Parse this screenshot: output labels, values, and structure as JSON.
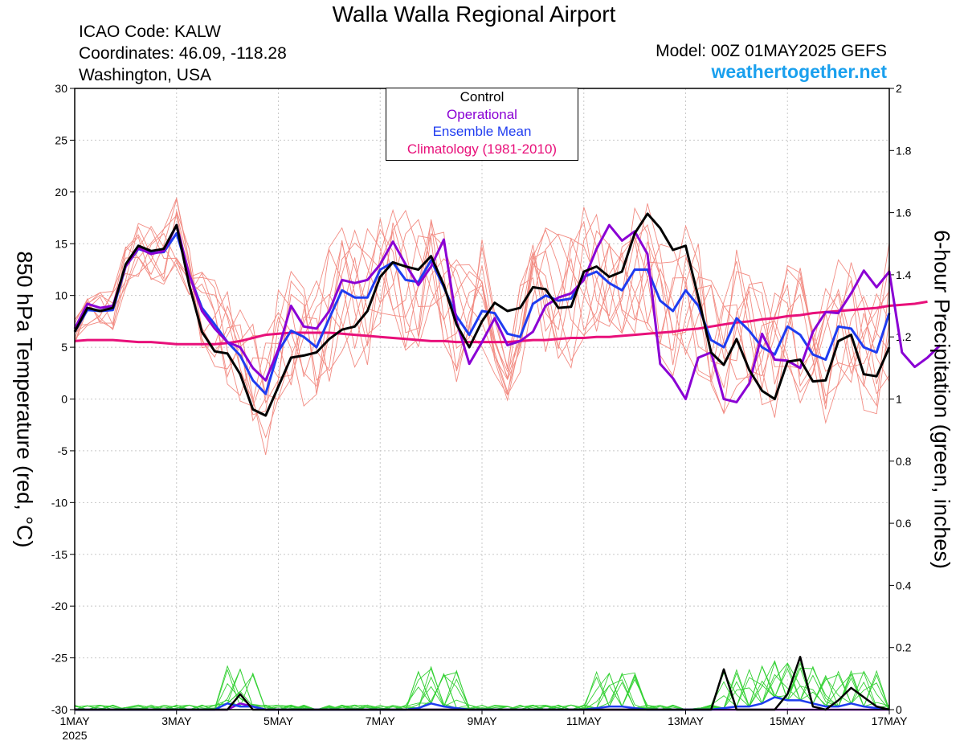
{
  "header": {
    "title": "Walla Walla Regional Airport",
    "icao": "ICAO Code: KALW",
    "coords": "Coordinates: 46.09, -118.28",
    "location": "Washington, USA",
    "model": "Model: 00Z 01MAY2025 GEFS",
    "site": "weathertogether.net"
  },
  "legend": {
    "items": [
      {
        "label": "Control",
        "color": "#000000"
      },
      {
        "label": "Operational",
        "color": "#8a00d4"
      },
      {
        "label": "Ensemble Mean",
        "color": "#1f3cf0"
      },
      {
        "label": "Climatology (1981-2010)",
        "color": "#e8107a"
      }
    ]
  },
  "axes": {
    "left_label": "850 hPa Temperature (red, °C)",
    "right_label": "6-hour Precipitation (green, inches)",
    "left_ticks": [
      "30",
      "25",
      "20",
      "15",
      "10",
      "5",
      "0",
      "-5",
      "-10",
      "-15",
      "-20",
      "-25",
      "-30"
    ],
    "right_ticks": [
      "2",
      "1.8",
      "1.6",
      "1.4",
      "1.2",
      "1",
      "0.8",
      "0.6",
      "0.4",
      "0.2",
      "0"
    ],
    "x_ticks": [
      "1MAY",
      "3MAY",
      "5MAY",
      "7MAY",
      "9MAY",
      "11MAY",
      "13MAY",
      "15MAY",
      "17MAY"
    ],
    "x_year": "2025"
  },
  "chart_data": {
    "type": "line",
    "title": "Walla Walla Regional Airport",
    "x_unit": "hours since 00Z 01MAY2025, 6-hourly",
    "xlim": [
      0,
      384
    ],
    "ylim_left": [
      -30,
      30
    ],
    "ylim_right": [
      0,
      2
    ],
    "grid": true,
    "series": [
      {
        "name": "Control",
        "axis": "temperature",
        "color": "#000000",
        "values": [
          6.5,
          8.8,
          8.5,
          8.8,
          13,
          14.8,
          14.3,
          14.5,
          16.8,
          11,
          6.5,
          4.6,
          4.4,
          2.4,
          -1,
          -1.6,
          1.2,
          4,
          4.2,
          4.5,
          5.8,
          6.7,
          7,
          8.5,
          11.8,
          13.2,
          12.8,
          12.5,
          13.8,
          11,
          7.2,
          5,
          7.5,
          9.3,
          8.5,
          8.8,
          10.8,
          10.6,
          8.8,
          8.9,
          12.3,
          12.8,
          11.8,
          12.3,
          16,
          17.9,
          16.5,
          14.4,
          14.8,
          9.8,
          4.5,
          3.3,
          5.8,
          2.8,
          0.8,
          0,
          3.6,
          3.8,
          1.7,
          1.8,
          5.6,
          6.2,
          2.4,
          2.2,
          5
        ]
      },
      {
        "name": "Operational",
        "axis": "temperature",
        "color": "#8a00d4",
        "values": [
          6.8,
          9.2,
          8.8,
          9,
          12.8,
          14.6,
          14,
          14.3,
          16.8,
          12,
          8.5,
          6.8,
          5.5,
          5,
          3,
          1.8,
          4.8,
          9,
          7,
          6.8,
          8.5,
          11.5,
          11.2,
          11.5,
          13,
          15.2,
          13,
          11,
          12.8,
          15.4,
          7.5,
          3.4,
          5.5,
          7.8,
          5.2,
          5.6,
          6.5,
          9,
          9.8,
          10.2,
          11.5,
          14.5,
          16.8,
          15.3,
          16.2,
          14,
          3.4,
          2,
          0,
          4,
          4.5,
          0,
          -0.3,
          1.5,
          6.3,
          3.8,
          3.7,
          3,
          6.5,
          8.4,
          8.3,
          10.2,
          12.4,
          10.8,
          12.3,
          4.5,
          3.1,
          4,
          5.2
        ]
      },
      {
        "name": "Ensemble Mean",
        "axis": "temperature",
        "color": "#1f3cf0",
        "values": [
          6.5,
          8.6,
          8.5,
          8.6,
          12.8,
          14.5,
          14.1,
          14.2,
          16,
          12,
          8.8,
          7.2,
          5.5,
          4.2,
          1.8,
          0.5,
          4.6,
          6.6,
          6,
          5,
          7.8,
          10.5,
          9.8,
          9.8,
          12.5,
          13.2,
          11.5,
          11.3,
          13.4,
          10.8,
          8,
          6.2,
          8.5,
          8.3,
          6.3,
          6,
          9.2,
          10,
          9.5,
          9.7,
          11.8,
          12.3,
          11.2,
          10.5,
          12.5,
          12.5,
          9.5,
          8.5,
          10.5,
          9,
          5.7,
          5,
          7.8,
          6.6,
          5,
          4.3,
          7,
          6.2,
          4.3,
          3.8,
          7,
          6.8,
          5,
          4.5,
          8.3
        ]
      },
      {
        "name": "Climatology (1981-2010)",
        "axis": "temperature",
        "color": "#e8107a",
        "values": [
          5.6,
          5.7,
          5.7,
          5.7,
          5.6,
          5.5,
          5.5,
          5.4,
          5.3,
          5.3,
          5.3,
          5.3,
          5.4,
          5.6,
          5.9,
          6.2,
          6.3,
          6.4,
          6.4,
          6.4,
          6.4,
          6.3,
          6.2,
          6.1,
          6,
          5.9,
          5.8,
          5.7,
          5.6,
          5.6,
          5.5,
          5.5,
          5.5,
          5.5,
          5.5,
          5.6,
          5.7,
          5.7,
          5.8,
          5.9,
          5.9,
          6,
          6,
          6.1,
          6.2,
          6.3,
          6.4,
          6.5,
          6.7,
          6.8,
          7,
          7.2,
          7.4,
          7.5,
          7.7,
          7.8,
          8,
          8.1,
          8.3,
          8.4,
          8.5,
          8.6,
          8.7,
          8.8,
          9,
          9.1,
          9.2,
          9.4
        ]
      },
      {
        "name": "Control precipitation",
        "axis": "precipitation",
        "color": "#000000",
        "values": [
          0,
          0,
          0,
          0,
          0,
          0,
          0,
          0,
          0,
          0,
          0,
          0,
          0,
          0.05,
          0,
          0,
          0,
          0,
          0,
          0,
          0,
          0,
          0,
          0,
          0,
          0,
          0,
          0,
          0,
          0,
          0,
          0,
          0,
          0,
          0,
          0,
          0,
          0,
          0,
          0,
          0,
          0,
          0,
          0,
          0,
          0,
          0,
          0,
          0,
          0,
          0,
          0.13,
          0,
          0,
          0,
          0,
          0.05,
          0.17,
          0.01,
          0,
          0.03,
          0.07,
          0.04,
          0.01,
          0
        ]
      },
      {
        "name": "Ensemble mean precipitation",
        "axis": "precipitation",
        "color": "#1f3cf0",
        "values": [
          0,
          0,
          0,
          0,
          0,
          0,
          0,
          0,
          0,
          0,
          0,
          0,
          0.02,
          0.01,
          0.01,
          0,
          0,
          0,
          0,
          0,
          0,
          0,
          0,
          0,
          0,
          0,
          0,
          0.005,
          0.02,
          0.01,
          0.005,
          0,
          0,
          0,
          0,
          0,
          0,
          0,
          0,
          0,
          0,
          0.005,
          0.01,
          0.01,
          0.005,
          0,
          0,
          0,
          0,
          0,
          0,
          0.005,
          0.01,
          0.01,
          0.02,
          0.04,
          0.03,
          0.03,
          0.02,
          0.01,
          0.01,
          0.02,
          0.01,
          0.005,
          0
        ]
      },
      {
        "name": "Operational precipitation",
        "axis": "precipitation",
        "color": "#8a00d4",
        "values": [
          0,
          0,
          0,
          0,
          0,
          0,
          0,
          0,
          0,
          0,
          0,
          0,
          0,
          0.02,
          0.01,
          0,
          0,
          0,
          0,
          0,
          0,
          0,
          0,
          0,
          0,
          0,
          0,
          0,
          0,
          0,
          0,
          0,
          0,
          0,
          0,
          0,
          0,
          0,
          0,
          0,
          0,
          0,
          0,
          0,
          0,
          0,
          0,
          0,
          0,
          0,
          0,
          0,
          0,
          0,
          0,
          0,
          0,
          0,
          0,
          0,
          0,
          0,
          0,
          0,
          0
        ]
      }
    ]
  }
}
